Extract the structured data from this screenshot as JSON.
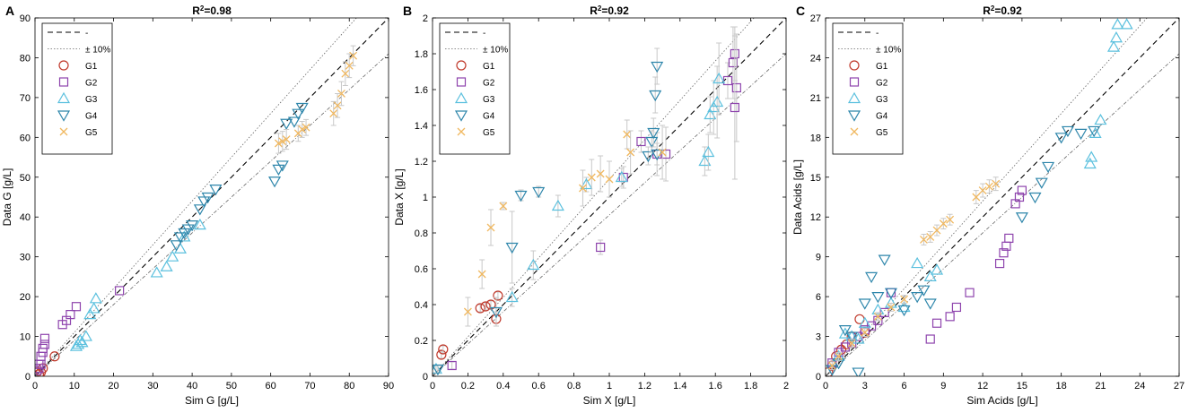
{
  "colors": {
    "G1": "#c0392b",
    "G2": "#8e44ad",
    "G3": "#5bc0de",
    "G4": "#2e86ab",
    "G5": "#f0b860",
    "errorbar": "#c8c8c8",
    "axis": "#000000"
  },
  "chart_data": [
    {
      "type": "scatter",
      "panel": "A",
      "title_prefix": "R",
      "title_sup": "2",
      "title_suffix": "=0.98",
      "xlabel": "Sim G [g/L]",
      "ylabel": "Data G [g/L]",
      "xlim": [
        0,
        90
      ],
      "ylim": [
        0,
        90
      ],
      "ticks": [
        0,
        10,
        20,
        30,
        40,
        50,
        60,
        70,
        80,
        90
      ],
      "tick_labels": [
        "0",
        "10",
        "20",
        "30",
        "40",
        "50",
        "60",
        "70",
        "80",
        "90"
      ],
      "legend": [
        "-",
        "± 10%",
        "G1",
        "G2",
        "G3",
        "G4",
        "G5"
      ],
      "series": [
        {
          "name": "G1",
          "marker": "circle",
          "points": [
            [
              0.5,
              1
            ],
            [
              1,
              0.5
            ],
            [
              1.5,
              1
            ],
            [
              2,
              2
            ],
            [
              5,
              5
            ]
          ]
        },
        {
          "name": "G2",
          "marker": "square",
          "points": [
            [
              0.5,
              1.5
            ],
            [
              1,
              3
            ],
            [
              1.5,
              5
            ],
            [
              2,
              6
            ],
            [
              2,
              7
            ],
            [
              2.5,
              8
            ],
            [
              2.5,
              9.5
            ],
            [
              7,
              13
            ],
            [
              8,
              14
            ],
            [
              9,
              15.5
            ],
            [
              10.5,
              17.5
            ],
            [
              21.5,
              21.5
            ],
            [
              1,
              2
            ],
            [
              1.5,
              3
            ]
          ]
        },
        {
          "name": "G3",
          "marker": "triangle-up",
          "points": [
            [
              11,
              8
            ],
            [
              11.5,
              9
            ],
            [
              12,
              8.5
            ],
            [
              13,
              10
            ],
            [
              14,
              15.5
            ],
            [
              15,
              17
            ],
            [
              15.5,
              19.5
            ],
            [
              31,
              26
            ],
            [
              33.5,
              27.5
            ],
            [
              35,
              30
            ],
            [
              37,
              32
            ],
            [
              38,
              35
            ],
            [
              42,
              38
            ],
            [
              10.5,
              7.5
            ]
          ]
        },
        {
          "name": "G4",
          "marker": "triangle-down",
          "points": [
            [
              36,
              33
            ],
            [
              37,
              35
            ],
            [
              38,
              36
            ],
            [
              39,
              37
            ],
            [
              40,
              38
            ],
            [
              42,
              42
            ],
            [
              43,
              44
            ],
            [
              44,
              45
            ],
            [
              46,
              47
            ],
            [
              61,
              49
            ],
            [
              62,
              52
            ],
            [
              63,
              53
            ],
            [
              64,
              63.5
            ],
            [
              66,
              64
            ],
            [
              67,
              66
            ],
            [
              68,
              67.5
            ]
          ]
        },
        {
          "name": "G5",
          "marker": "x",
          "points": [
            [
              62,
              58.5
            ],
            [
              63,
              59
            ],
            [
              64,
              59.5
            ],
            [
              67,
              61
            ],
            [
              68,
              62
            ],
            [
              69,
              62.5
            ],
            [
              76,
              66
            ],
            [
              77,
              68
            ],
            [
              78,
              71
            ],
            [
              79,
              76
            ],
            [
              80,
              78
            ],
            [
              81,
              80.5
            ]
          ],
          "errors": [
            2.5,
            2.5,
            2.5,
            2,
            2,
            2,
            3,
            3,
            3,
            3,
            3,
            2.5
          ]
        }
      ]
    },
    {
      "type": "scatter",
      "panel": "B",
      "title_prefix": "R",
      "title_sup": "2",
      "title_suffix": "=0.92",
      "xlabel": "Sim X [g/L]",
      "ylabel": "Data X [g/L]",
      "xlim": [
        0,
        2
      ],
      "ylim": [
        0,
        2
      ],
      "ticks": [
        0,
        0.2,
        0.4,
        0.6,
        0.8,
        1,
        1.2,
        1.4,
        1.6,
        1.8,
        2
      ],
      "tick_labels": [
        "0",
        "0.2",
        "0.4",
        "0.6",
        "0.8",
        "1",
        "1.2",
        "1.4",
        "1.6",
        "1.8",
        "2"
      ],
      "legend": [
        "-",
        "± 10%",
        "G1",
        "G2",
        "G3",
        "G4",
        "G5"
      ],
      "series": [
        {
          "name": "G1",
          "marker": "circle",
          "points": [
            [
              0.05,
              0.12
            ],
            [
              0.06,
              0.15
            ],
            [
              0.27,
              0.38
            ],
            [
              0.3,
              0.39
            ],
            [
              0.33,
              0.4
            ],
            [
              0.37,
              0.45
            ],
            [
              0.36,
              0.32
            ]
          ],
          "errors": [
            0.02,
            0.02,
            0.02,
            0.02,
            0.02,
            0.02,
            0.04
          ]
        },
        {
          "name": "G2",
          "marker": "square",
          "points": [
            [
              0.11,
              0.06
            ],
            [
              0.95,
              0.72
            ],
            [
              1.08,
              1.11
            ],
            [
              1.18,
              1.31
            ],
            [
              1.27,
              1.24
            ],
            [
              1.32,
              1.24
            ],
            [
              1.67,
              1.65
            ],
            [
              1.7,
              1.75
            ],
            [
              1.71,
              1.8
            ],
            [
              1.72,
              1.61
            ],
            [
              1.71,
              1.5
            ]
          ],
          "errors": [
            0.02,
            0.04,
            0.06,
            0.06,
            0.12,
            0.15,
            0.1,
            0.2,
            0.15,
            0.3,
            0.4
          ]
        },
        {
          "name": "G3",
          "marker": "triangle-up",
          "points": [
            [
              0.02,
              0.04
            ],
            [
              0.45,
              0.44
            ],
            [
              0.57,
              0.62
            ],
            [
              0.71,
              0.95
            ],
            [
              0.87,
              1.07
            ],
            [
              1.07,
              1.11
            ],
            [
              1.54,
              1.2
            ],
            [
              1.56,
              1.25
            ],
            [
              1.57,
              1.46
            ],
            [
              1.59,
              1.5
            ],
            [
              1.61,
              1.53
            ],
            [
              1.62,
              1.66
            ]
          ],
          "errors": [
            0.02,
            0.05,
            0.08,
            0.06,
            0.04,
            0.05,
            0.08,
            0.1,
            0.1,
            0.15,
            0.2,
            0.2
          ]
        },
        {
          "name": "G4",
          "marker": "triangle-down",
          "points": [
            [
              0.03,
              0.04
            ],
            [
              0.36,
              0.36
            ],
            [
              0.45,
              0.72
            ],
            [
              0.5,
              1.01
            ],
            [
              0.6,
              1.03
            ],
            [
              1.22,
              1.23
            ],
            [
              1.24,
              1.31
            ],
            [
              1.25,
              1.36
            ],
            [
              1.26,
              1.57
            ],
            [
              1.27,
              1.73
            ],
            [
              1.27,
              1.24
            ]
          ],
          "errors": [
            0.02,
            0.08,
            0.2,
            0.03,
            0.03,
            0.05,
            0.06,
            0.08,
            0.1,
            0.1,
            0.06
          ]
        },
        {
          "name": "G5",
          "marker": "x",
          "points": [
            [
              0.2,
              0.36
            ],
            [
              0.28,
              0.57
            ],
            [
              0.33,
              0.83
            ],
            [
              0.4,
              0.95
            ],
            [
              0.9,
              1.11
            ],
            [
              0.95,
              1.13
            ],
            [
              1.0,
              1.1
            ],
            [
              1.1,
              1.35
            ],
            [
              1.12,
              1.25
            ],
            [
              0.85,
              1.05
            ],
            [
              1.3,
              1.25
            ]
          ],
          "errors": [
            0.08,
            0.08,
            0.1,
            0.02,
            0.1,
            0.1,
            0.1,
            0.08,
            0.12,
            0.1,
            0.15
          ]
        }
      ]
    },
    {
      "type": "scatter",
      "panel": "C",
      "title_prefix": "R",
      "title_sup": "2",
      "title_suffix": "=0.92",
      "xlabel": "Sim Acids [g/L]",
      "ylabel": "Data Acids [g/L]",
      "xlim": [
        0,
        27
      ],
      "ylim": [
        0,
        27
      ],
      "ticks": [
        0,
        3,
        6,
        9,
        12,
        15,
        18,
        21,
        24,
        27
      ],
      "tick_labels": [
        "0",
        "3",
        "6",
        "9",
        "12",
        "15",
        "18",
        "21",
        "24",
        "27"
      ],
      "legend": [
        "-",
        "± 10%",
        "G1",
        "G2",
        "G3",
        "G4",
        "G5"
      ],
      "series": [
        {
          "name": "G1",
          "marker": "circle",
          "points": [
            [
              0.2,
              0.3
            ],
            [
              0.5,
              0.8
            ],
            [
              0.8,
              1.5
            ],
            [
              1.2,
              2
            ],
            [
              1.6,
              2.4
            ],
            [
              2,
              3
            ],
            [
              2.6,
              4.3
            ],
            [
              3,
              3.3
            ]
          ]
        },
        {
          "name": "G2",
          "marker": "square",
          "points": [
            [
              0.5,
              1
            ],
            [
              1,
              1.8
            ],
            [
              1.5,
              2.2
            ],
            [
              2,
              2.5
            ],
            [
              2.5,
              3
            ],
            [
              3,
              3.5
            ],
            [
              3.5,
              3.8
            ],
            [
              4,
              4.2
            ],
            [
              4.5,
              4.8
            ],
            [
              5,
              6.3
            ],
            [
              8,
              2.8
            ],
            [
              8.5,
              4
            ],
            [
              9.5,
              4.5
            ],
            [
              10,
              5.2
            ],
            [
              11,
              6.3
            ],
            [
              13.3,
              8.5
            ],
            [
              13.6,
              9.3
            ],
            [
              13.8,
              9.8
            ],
            [
              14,
              10.4
            ],
            [
              14.5,
              13
            ],
            [
              14.8,
              13.5
            ],
            [
              15,
              14
            ]
          ]
        },
        {
          "name": "G3",
          "marker": "triangle-up",
          "points": [
            [
              1,
              1.5
            ],
            [
              2,
              3
            ],
            [
              3,
              4
            ],
            [
              4,
              5
            ],
            [
              5,
              5.5
            ],
            [
              6,
              5.2
            ],
            [
              7,
              8.5
            ],
            [
              8,
              7.5
            ],
            [
              8.5,
              8
            ],
            [
              20.2,
              16
            ],
            [
              20.3,
              16.5
            ],
            [
              20.6,
              18.3
            ],
            [
              21,
              19.3
            ],
            [
              22,
              24.8
            ],
            [
              22.2,
              25.5
            ],
            [
              22.3,
              26.5
            ],
            [
              23,
              26.5
            ],
            [
              1.5,
              3.2
            ],
            [
              2.5,
              2.8
            ]
          ]
        },
        {
          "name": "G4",
          "marker": "triangle-down",
          "points": [
            [
              0.5,
              0.5
            ],
            [
              1,
              1
            ],
            [
              1.5,
              3.5
            ],
            [
              2,
              3
            ],
            [
              2.5,
              0.3
            ],
            [
              3,
              5.5
            ],
            [
              3.5,
              7.5
            ],
            [
              4,
              6
            ],
            [
              4.5,
              8.8
            ],
            [
              5,
              6.3
            ],
            [
              6,
              5
            ],
            [
              7,
              6
            ],
            [
              7.5,
              6.5
            ],
            [
              8,
              5.5
            ],
            [
              15,
              12
            ],
            [
              16,
              13.5
            ],
            [
              16.5,
              14.6
            ],
            [
              17,
              15.8
            ],
            [
              18,
              18
            ],
            [
              18.5,
              18.5
            ],
            [
              19.5,
              18.3
            ],
            [
              20.5,
              18.5
            ]
          ]
        },
        {
          "name": "G5",
          "marker": "x",
          "points": [
            [
              0.5,
              0.8
            ],
            [
              1,
              1.5
            ],
            [
              2,
              2.5
            ],
            [
              3,
              3.3
            ],
            [
              4,
              4.5
            ],
            [
              5,
              5.2
            ],
            [
              6,
              5.8
            ],
            [
              7.5,
              10.3
            ],
            [
              8,
              10.5
            ],
            [
              8.5,
              11
            ],
            [
              9,
              11.5
            ],
            [
              9.5,
              11.8
            ],
            [
              11.5,
              13.5
            ],
            [
              12,
              14
            ],
            [
              12.5,
              14.3
            ],
            [
              13,
              14.5
            ]
          ],
          "errors": [
            0.3,
            0.3,
            0.3,
            0.3,
            0.3,
            0.3,
            0.3,
            0.4,
            0.4,
            0.4,
            0.4,
            0.4,
            0.5,
            0.5,
            0.5,
            0.5
          ]
        }
      ]
    }
  ]
}
